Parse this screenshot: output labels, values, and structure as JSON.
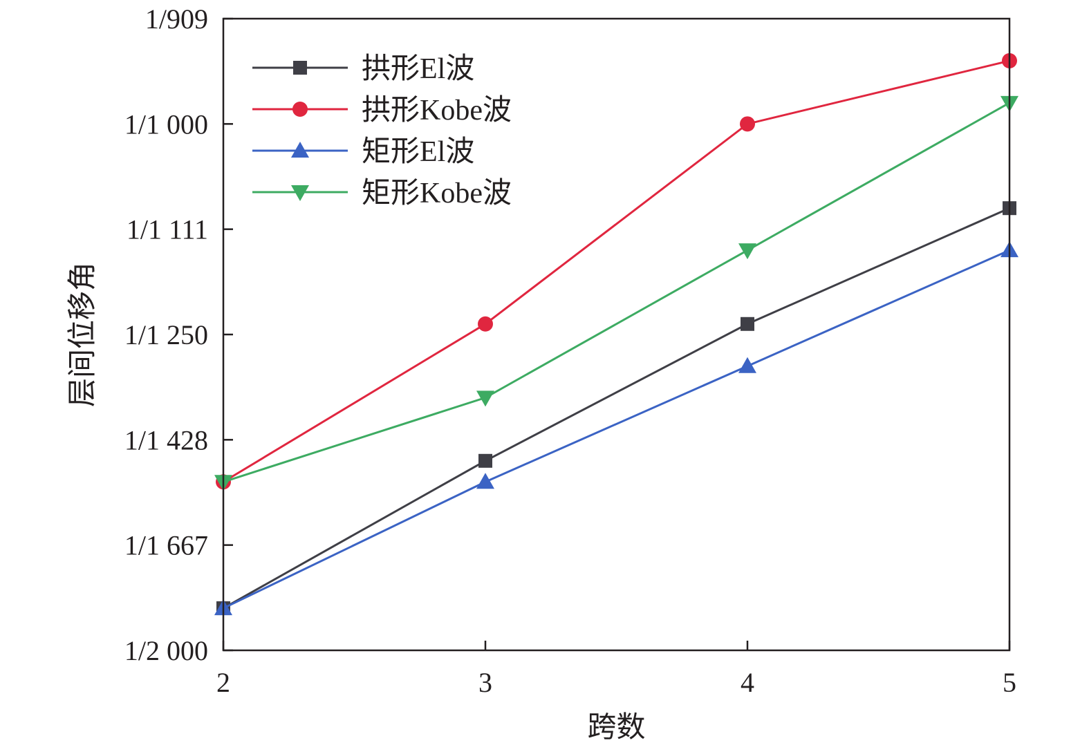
{
  "chart_data": {
    "type": "line",
    "xlabel": "跨数",
    "ylabel": "层间位移角",
    "x": [
      2,
      3,
      4,
      5
    ],
    "x_ticks": [
      "2",
      "3",
      "4",
      "5"
    ],
    "xlim": [
      2,
      5
    ],
    "y_scale": "reciprocal",
    "y_ticks": [
      "1/909",
      "1/1 000",
      "1/1 111",
      "1/1 250",
      "1/1 428",
      "1/1 667",
      "1/2 000"
    ],
    "y_tick_values": [
      0.0011,
      0.001,
      0.0009,
      0.0008,
      0.0007,
      0.0006,
      0.0005
    ],
    "ylim": [
      0.0005,
      0.0011
    ],
    "grid": false,
    "legend_position": "top-left",
    "series": [
      {
        "name": "拱形El波",
        "color": "#3f3f46",
        "marker": "square",
        "values": [
          0.00054,
          0.00068,
          0.00081,
          0.00092
        ]
      },
      {
        "name": "拱形Kobe波",
        "color": "#e0263f",
        "marker": "circle",
        "values": [
          0.00066,
          0.00081,
          0.001,
          0.00106
        ]
      },
      {
        "name": "矩形El波",
        "color": "#3b63c4",
        "marker": "triangle-up",
        "values": [
          0.00054,
          0.00066,
          0.00077,
          0.00088
        ]
      },
      {
        "name": "矩形Kobe波",
        "color": "#3dab62",
        "marker": "triangle-down",
        "values": [
          0.00066,
          0.00074,
          0.00088,
          0.00102
        ]
      }
    ]
  }
}
